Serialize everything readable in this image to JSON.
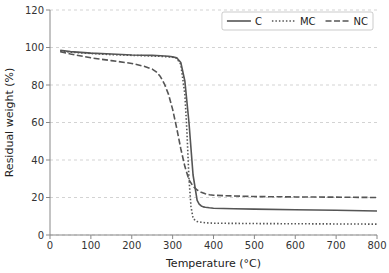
{
  "chart_data": {
    "type": "line",
    "xlabel": "Temperature (°C)",
    "ylabel": "Residual weight (%)",
    "xlim": [
      0,
      800
    ],
    "ylim": [
      0,
      120
    ],
    "xticks": [
      0,
      100,
      200,
      300,
      400,
      500,
      600,
      700,
      800
    ],
    "yticks": [
      0,
      20,
      40,
      60,
      80,
      100,
      120
    ],
    "grid": "y",
    "legend": "upper right",
    "series": [
      {
        "name": "C",
        "color": "#555555",
        "line_style": "solid",
        "x": [
          25,
          50,
          100,
          150,
          200,
          250,
          270,
          290,
          300,
          310,
          320,
          330,
          340,
          350,
          360,
          365,
          370,
          375,
          380,
          390,
          400,
          450,
          500,
          600,
          700,
          800
        ],
        "values": [
          98.5,
          97.8,
          97.0,
          96.5,
          96.0,
          95.8,
          95.6,
          95.3,
          95.0,
          94.5,
          92.0,
          82.0,
          60.0,
          32.0,
          18.5,
          16.5,
          15.5,
          15.0,
          14.8,
          14.5,
          14.3,
          14.0,
          13.8,
          13.5,
          13.2,
          12.8
        ]
      },
      {
        "name": "MC",
        "color": "#555555",
        "line_style": "dotted",
        "x": [
          25,
          50,
          100,
          150,
          200,
          250,
          270,
          290,
          300,
          310,
          320,
          330,
          335,
          340,
          345,
          350,
          355,
          360,
          365,
          370,
          380,
          400,
          450,
          500,
          600,
          700,
          800
        ],
        "values": [
          98.2,
          97.5,
          96.8,
          96.2,
          95.8,
          95.5,
          95.3,
          95.0,
          94.8,
          94.3,
          91.0,
          75.0,
          55.0,
          30.0,
          15.0,
          9.0,
          7.8,
          7.2,
          7.0,
          6.8,
          6.5,
          6.3,
          6.2,
          6.1,
          6.0,
          5.9,
          5.8
        ]
      },
      {
        "name": "NC",
        "color": "#555555",
        "line_style": "dashed",
        "x": [
          25,
          50,
          100,
          150,
          200,
          230,
          250,
          260,
          270,
          280,
          290,
          300,
          310,
          320,
          330,
          340,
          350,
          360,
          370,
          380,
          390,
          400,
          450,
          500,
          600,
          700,
          800
        ],
        "values": [
          97.8,
          96.5,
          94.5,
          93.0,
          91.5,
          90.0,
          88.5,
          87.0,
          84.5,
          80.5,
          75.0,
          67.0,
          57.0,
          46.0,
          36.5,
          29.5,
          26.0,
          24.0,
          22.8,
          22.0,
          21.5,
          21.2,
          20.8,
          20.5,
          20.3,
          20.2,
          20.0
        ]
      }
    ]
  }
}
